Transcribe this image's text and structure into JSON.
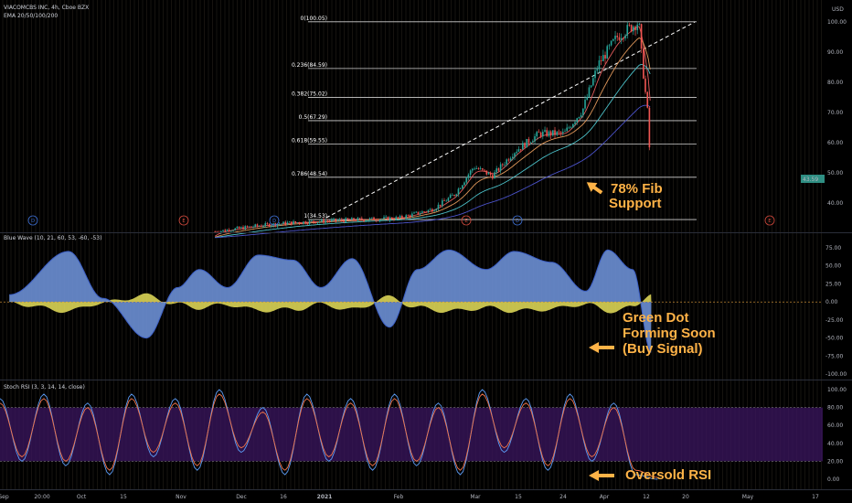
{
  "header": {
    "title": "VIACOMCBS INC, 4h, Cboe BZX",
    "ema_label": "EMA 20/50/100/200",
    "currency": "USD",
    "price_tag": "43.59"
  },
  "panes": {
    "blue_wave_label": "Blue Wave (10, 21, 60, 53, -60, -53)",
    "stoch_label": "Stoch RSI (3, 3, 14, 14, close)"
  },
  "annotations": {
    "fib_note_line1": "78% Fib",
    "fib_note_line2": "Support",
    "wave_note_line1": "Green Dot",
    "wave_note_line2": "Forming Soon",
    "wave_note_line3": "(Buy Signal)",
    "rsi_note": "Oversold RSI"
  },
  "colors": {
    "background": "#000000",
    "grid": "#16130f",
    "candle_up": "#26a69a",
    "candle_down": "#ef5350",
    "wave_fill": "#6c8fd4",
    "wave_yellow": "#e8e05a",
    "wave_orange": "#e8a33d",
    "stoch_band": "#3b1660",
    "stoch_k": "#5b9cf5",
    "stoch_d": "#f0744a",
    "note": "#ffb347",
    "ema_20": "#e05a5a",
    "ema_50": "#e0975a",
    "ema_100": "#4bc0c8",
    "ema_200": "#4a52c8"
  },
  "chart_data": [
    {
      "type": "candlestick",
      "title": "VIACOMCBS INC, 4h, Cboe BZX",
      "ylabel": "USD",
      "ylim": [
        35,
        103
      ],
      "y_ticks": [
        "100.00",
        "90.00",
        "80.00",
        "70.00",
        "60.00",
        "50.00",
        "40.00"
      ],
      "x_ticks": [
        "Sep",
        "20:00",
        "Oct",
        "15",
        "Nov",
        "Dec",
        "16",
        "2021",
        "Feb",
        "Mar",
        "15",
        "24",
        "Apr",
        "12",
        "20",
        "May",
        "17"
      ],
      "close_path": [
        {
          "x": "2020-11-06",
          "y": 30.5
        },
        {
          "x": "2020-11-20",
          "y": 32.5
        },
        {
          "x": "2020-12-01",
          "y": 33.5
        },
        {
          "x": "2020-12-15",
          "y": 34.2
        },
        {
          "x": "2021-01-04",
          "y": 35.0
        },
        {
          "x": "2021-01-15",
          "y": 38.0
        },
        {
          "x": "2021-01-22",
          "y": 43.0
        },
        {
          "x": "2021-01-28",
          "y": 52.0
        },
        {
          "x": "2021-02-03",
          "y": 49.0
        },
        {
          "x": "2021-02-10",
          "y": 57.0
        },
        {
          "x": "2021-02-18",
          "y": 63.0
        },
        {
          "x": "2021-02-26",
          "y": 63.0
        },
        {
          "x": "2021-03-04",
          "y": 71.0
        },
        {
          "x": "2021-03-09",
          "y": 86.0
        },
        {
          "x": "2021-03-15",
          "y": 95.0
        },
        {
          "x": "2021-03-19",
          "y": 98.0
        },
        {
          "x": "2021-03-22",
          "y": 100.0
        },
        {
          "x": "2021-03-23",
          "y": 87.0
        },
        {
          "x": "2021-03-25",
          "y": 68.0
        },
        {
          "x": "2021-03-26",
          "y": 43.59
        }
      ],
      "fib_levels": [
        {
          "label": "0(100.05)",
          "value": 100.05
        },
        {
          "label": "0.236(84.59)",
          "value": 84.59
        },
        {
          "label": "0.382(75.02)",
          "value": 75.02
        },
        {
          "label": "0.5(67.29)",
          "value": 67.29
        },
        {
          "label": "0.618(59.55)",
          "value": 59.55
        },
        {
          "label": "0.786(48.54)",
          "value": 48.54
        },
        {
          "label": "1(34.53)",
          "value": 34.53
        }
      ],
      "events": [
        "D",
        "E",
        "D",
        "E",
        "D",
        "E"
      ],
      "series": [
        {
          "name": "EMA 20"
        },
        {
          "name": "EMA 50"
        },
        {
          "name": "EMA 100"
        },
        {
          "name": "EMA 200"
        }
      ]
    },
    {
      "type": "area",
      "title": "Blue Wave (10, 21, 60, 53, -60, -53)",
      "ylim": [
        -100,
        75
      ],
      "y_ticks": [
        "75.00",
        "50.00",
        "25.00",
        "0.00",
        "-25.00",
        "-50.00",
        "-75.00",
        "-100.00"
      ],
      "wave": [
        {
          "x": "2020-09-01",
          "y": 10
        },
        {
          "x": "2020-09-20",
          "y": 70
        },
        {
          "x": "2020-10-01",
          "y": 5
        },
        {
          "x": "2020-10-15",
          "y": -50
        },
        {
          "x": "2020-10-25",
          "y": 20
        },
        {
          "x": "2020-11-01",
          "y": 45
        },
        {
          "x": "2020-11-10",
          "y": 20
        },
        {
          "x": "2020-11-20",
          "y": 65
        },
        {
          "x": "2020-12-01",
          "y": 58
        },
        {
          "x": "2020-12-10",
          "y": 20
        },
        {
          "x": "2020-12-20",
          "y": 60
        },
        {
          "x": "2021-01-01",
          "y": -35
        },
        {
          "x": "2021-01-10",
          "y": 45
        },
        {
          "x": "2021-01-20",
          "y": 72
        },
        {
          "x": "2021-02-01",
          "y": 45
        },
        {
          "x": "2021-02-10",
          "y": 70
        },
        {
          "x": "2021-02-22",
          "y": 55
        },
        {
          "x": "2021-03-05",
          "y": 15
        },
        {
          "x": "2021-03-12",
          "y": 72
        },
        {
          "x": "2021-03-20",
          "y": 45
        },
        {
          "x": "2021-03-26",
          "y": -70
        }
      ]
    },
    {
      "type": "line",
      "title": "Stoch RSI (3, 3, 14, 14, close)",
      "ylim": [
        0,
        100
      ],
      "y_ticks": [
        "100.00",
        "80.00",
        "60.00",
        "40.00",
        "20.00",
        "0.00"
      ],
      "band": [
        20,
        80
      ],
      "series": [
        {
          "values": [
            90,
            20,
            95,
            15,
            85,
            5,
            95,
            25,
            90,
            10,
            100,
            30,
            80,
            5,
            95,
            20,
            90,
            10,
            95,
            15,
            85,
            5,
            100,
            30,
            90,
            10,
            95,
            20,
            85,
            5,
            0
          ]
        },
        {
          "values": [
            85,
            25,
            90,
            20,
            80,
            10,
            90,
            30,
            85,
            15,
            95,
            35,
            75,
            10,
            90,
            25,
            85,
            15,
            90,
            20,
            80,
            10,
            95,
            35,
            85,
            15,
            90,
            25,
            80,
            10,
            2
          ]
        }
      ]
    }
  ]
}
